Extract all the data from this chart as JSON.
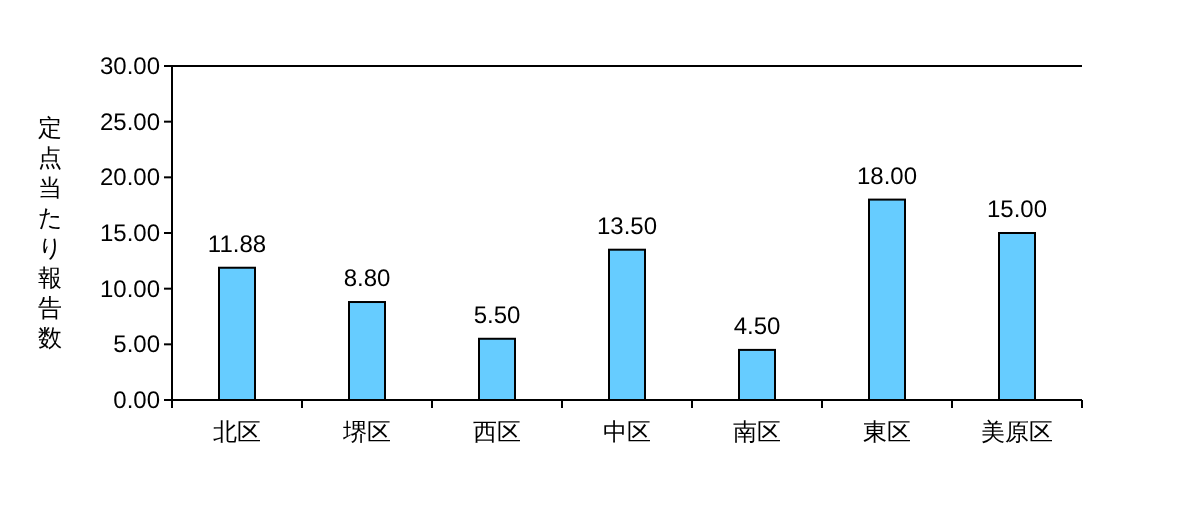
{
  "chart_data": {
    "type": "bar",
    "ylabel": "定点当たり報告数",
    "categories": [
      "北区",
      "堺区",
      "西区",
      "中区",
      "南区",
      "東区",
      "美原区"
    ],
    "values": [
      11.88,
      8.8,
      5.5,
      13.5,
      4.5,
      18,
      15
    ],
    "value_labels": [
      "11.88",
      "8.80",
      "5.50",
      "13.50",
      "4.50",
      "18.00",
      "15.00"
    ],
    "color": "#66ccff",
    "ylim": [
      0,
      30
    ],
    "yticks": [
      {
        "value": 0,
        "label": "0.00"
      },
      {
        "value": 5,
        "label": "5.00"
      },
      {
        "value": 10,
        "label": "10.00"
      },
      {
        "value": 15,
        "label": "15.00"
      },
      {
        "value": 20,
        "label": "20.00"
      },
      {
        "value": 25,
        "label": "25.00"
      },
      {
        "value": 30,
        "label": "30.00"
      }
    ],
    "grid": false
  }
}
